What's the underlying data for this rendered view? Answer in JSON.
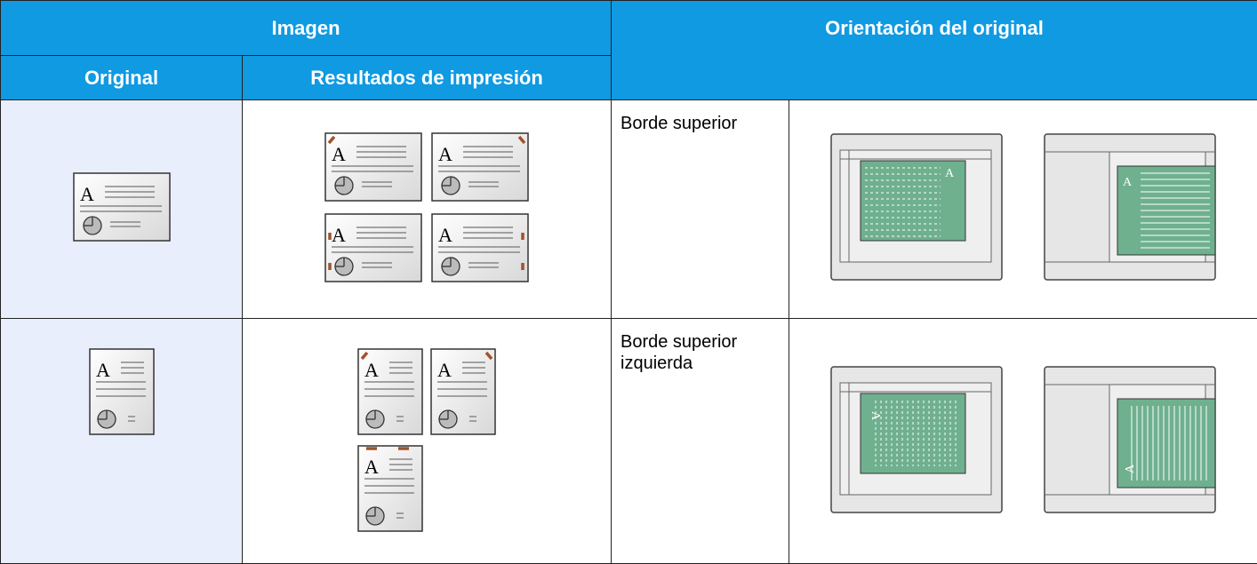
{
  "table": {
    "header": {
      "group_left": "Imagen",
      "group_right": "Orientación del original",
      "col_original": "Original",
      "col_results": "Resultados de impresión"
    },
    "rows": [
      {
        "orientation": "Borde superior"
      },
      {
        "orientation": "Borde superior izquierda"
      }
    ],
    "illustration_letter": "A"
  }
}
